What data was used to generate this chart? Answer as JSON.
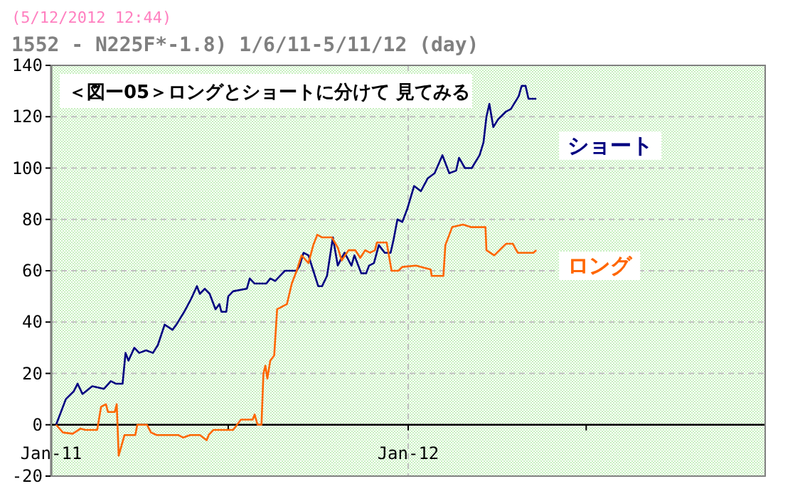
{
  "chart_data": {
    "type": "line",
    "title": "1552 - N225F*-1.8) 1/6/11-5/11/12 (day)",
    "subtitle": "＜図ー05＞ロングとショートに分けて 見てみる",
    "annotations": [
      "(5/12/2012 12:44)"
    ],
    "xlim": [
      "2011-01-01",
      "2012-12-31"
    ],
    "xticks": [
      {
        "value": "2011-01-01",
        "label": "Jan-11"
      },
      {
        "value": "2011-07-01",
        "label": null
      },
      {
        "value": "2012-01-01",
        "label": "Jan-12"
      },
      {
        "value": "2012-07-01",
        "label": null
      }
    ],
    "ylim": [
      -20,
      140
    ],
    "yticks": [
      -20,
      0,
      20,
      40,
      60,
      80,
      100,
      120,
      140
    ],
    "grid": true,
    "legend": false,
    "line_style": "solid",
    "marker": "none",
    "series": [
      {
        "name": "ショート",
        "color": "#000080",
        "x": [
          "2011-01-06",
          "2011-01-16",
          "2011-01-24",
          "2011-01-28",
          "2011-02-02",
          "2011-02-12",
          "2011-02-24",
          "2011-03-03",
          "2011-03-08",
          "2011-03-15",
          "2011-03-18",
          "2011-03-21",
          "2011-03-27",
          "2011-04-01",
          "2011-04-08",
          "2011-04-15",
          "2011-04-20",
          "2011-04-27",
          "2011-05-05",
          "2011-05-09",
          "2011-05-17",
          "2011-05-24",
          "2011-05-30",
          "2011-06-02",
          "2011-06-07",
          "2011-06-12",
          "2011-06-18",
          "2011-06-22",
          "2011-06-24",
          "2011-06-29",
          "2011-07-01",
          "2011-07-06",
          "2011-07-20",
          "2011-07-23",
          "2011-07-28",
          "2011-08-09",
          "2011-08-13",
          "2011-08-18",
          "2011-08-23",
          "2011-08-28",
          "2011-09-09",
          "2011-09-12",
          "2011-09-16",
          "2011-09-21",
          "2011-09-26",
          "2011-10-01",
          "2011-10-05",
          "2011-10-10",
          "2011-10-16",
          "2011-10-21",
          "2011-10-25",
          "2011-10-28",
          "2011-11-04",
          "2011-11-07",
          "2011-11-14",
          "2011-11-19",
          "2011-11-22",
          "2011-11-27",
          "2011-12-02",
          "2011-12-08",
          "2011-12-14",
          "2011-12-17",
          "2011-12-21",
          "2011-12-26",
          "2011-12-31",
          "2012-01-07",
          "2012-01-14",
          "2012-01-21",
          "2012-01-28",
          "2012-02-05",
          "2012-02-12",
          "2012-02-19",
          "2012-02-22",
          "2012-02-28",
          "2012-03-06",
          "2012-03-14",
          "2012-03-18",
          "2012-03-21",
          "2012-03-24",
          "2012-03-28",
          "2012-04-02",
          "2012-04-10",
          "2012-04-15",
          "2012-04-23",
          "2012-04-26",
          "2012-04-30",
          "2012-05-03",
          "2012-05-11"
        ],
        "values": [
          0,
          10,
          13,
          16,
          12,
          15,
          14,
          17,
          16,
          16,
          28,
          25,
          30,
          28,
          29,
          28,
          31,
          39,
          37,
          39,
          44,
          49,
          54,
          51,
          53,
          51,
          45,
          47,
          44,
          44,
          50,
          52,
          53,
          57,
          55,
          55,
          57,
          56,
          58,
          60,
          60,
          62,
          67,
          66,
          60,
          54,
          54,
          58,
          73,
          62,
          65,
          67,
          62,
          66,
          59,
          59,
          62,
          63,
          70,
          67,
          67,
          72,
          80,
          79,
          84,
          93,
          91,
          96,
          98,
          105,
          98,
          99,
          104,
          100,
          100,
          105,
          110,
          120,
          125,
          116,
          119,
          122,
          123,
          128,
          132,
          132,
          127,
          127
        ]
      },
      {
        "name": "ロング",
        "color": "#ff6600",
        "x": [
          "2011-01-06",
          "2011-01-13",
          "2011-01-23",
          "2011-01-31",
          "2011-02-05",
          "2011-02-17",
          "2011-02-21",
          "2011-02-26",
          "2011-02-28",
          "2011-03-07",
          "2011-03-09",
          "2011-03-11",
          "2011-03-17",
          "2011-03-28",
          "2011-03-30",
          "2011-04-09",
          "2011-04-13",
          "2011-04-19",
          "2011-05-11",
          "2011-05-16",
          "2011-05-23",
          "2011-06-02",
          "2011-06-09",
          "2011-06-11",
          "2011-06-16",
          "2011-07-06",
          "2011-07-14",
          "2011-07-26",
          "2011-07-28",
          "2011-07-31",
          "2011-08-04",
          "2011-08-06",
          "2011-08-08",
          "2011-08-10",
          "2011-08-13",
          "2011-08-17",
          "2011-08-20",
          "2011-08-25",
          "2011-08-30",
          "2011-09-04",
          "2011-09-09",
          "2011-09-14",
          "2011-09-21",
          "2011-09-26",
          "2011-09-30",
          "2011-10-05",
          "2011-10-15",
          "2011-10-21",
          "2011-10-25",
          "2011-11-01",
          "2011-11-08",
          "2011-11-13",
          "2011-11-18",
          "2011-11-23",
          "2011-11-28",
          "2011-11-30",
          "2011-12-10",
          "2011-12-15",
          "2011-12-22",
          "2011-12-26",
          "2012-01-09",
          "2012-01-24",
          "2012-01-25",
          "2012-02-06",
          "2012-02-08",
          "2012-02-15",
          "2012-02-26",
          "2012-03-05",
          "2012-03-20",
          "2012-03-21",
          "2012-03-29",
          "2012-04-06",
          "2012-04-10",
          "2012-04-17",
          "2012-04-22",
          "2012-05-08",
          "2012-05-11"
        ],
        "values": [
          0,
          -3,
          -3.5,
          -1.5,
          -2,
          -2,
          7,
          8,
          5,
          5,
          8,
          -12,
          -4,
          -4,
          0,
          0,
          -3,
          -4,
          -4,
          -5,
          -4,
          -4,
          -6,
          -4,
          -2,
          -2,
          2,
          2,
          4,
          0,
          0,
          20,
          23,
          18,
          25,
          27,
          45,
          46,
          47,
          55,
          60,
          66,
          63,
          70,
          74,
          73,
          73,
          69,
          64,
          68,
          68,
          65,
          68,
          67,
          68,
          71,
          71,
          60,
          60,
          61.5,
          62,
          60.5,
          58,
          58,
          70,
          77,
          78,
          77,
          77,
          68,
          66,
          69,
          70.5,
          70.5,
          67,
          67,
          68
        ]
      }
    ]
  }
}
